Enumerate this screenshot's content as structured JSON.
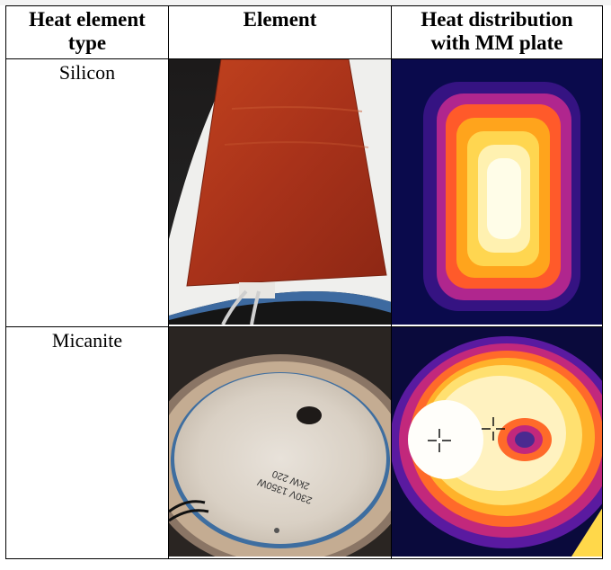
{
  "table": {
    "headers": {
      "col1_line1": "Heat element",
      "col1_line2": "type",
      "col2": "Element",
      "col3_line1": "Heat distribution",
      "col3_line2": "with MM plate"
    },
    "rows": [
      {
        "type": "Silicon",
        "element_image": "red-silicon-heating-pad-photo",
        "heat_image": "thermal-image-rectangular-hotspot"
      },
      {
        "type": "Micanite",
        "element_image": "circular-micanite-plate-photo",
        "heat_image": "thermal-image-circular-distribution"
      }
    ],
    "plate_label": "230V 1350W\n2kW 220"
  }
}
